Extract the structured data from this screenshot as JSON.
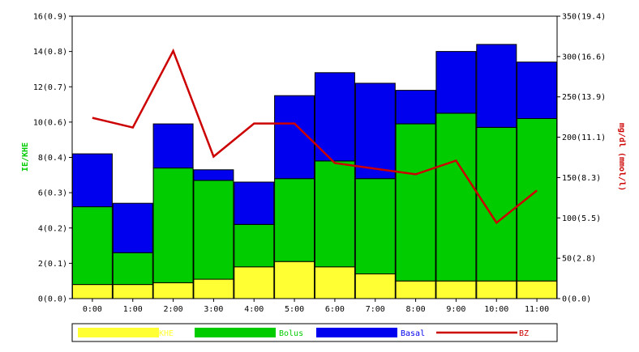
{
  "chart_data": {
    "type": "bar",
    "stacked": true,
    "categories": [
      "0:00",
      "1:00",
      "2:00",
      "3:00",
      "4:00",
      "5:00",
      "6:00",
      "7:00",
      "8:00",
      "9:00",
      "10:00",
      "11:00"
    ],
    "series": [
      {
        "name": "KHE",
        "color": "#ffff33",
        "values": [
          0.8,
          0.8,
          0.9,
          1.1,
          1.8,
          2.1,
          1.8,
          1.4,
          1.0,
          1.0,
          1.0,
          1.0
        ]
      },
      {
        "name": "Bolus",
        "color": "#00cc00",
        "values": [
          4.4,
          1.8,
          6.5,
          5.6,
          2.4,
          4.7,
          6.0,
          5.4,
          8.9,
          9.5,
          8.7,
          9.2
        ]
      },
      {
        "name": "Basal",
        "color": "#0000ee",
        "values": [
          3.0,
          2.8,
          2.5,
          0.6,
          2.4,
          4.7,
          5.0,
          5.4,
          1.9,
          3.5,
          4.7,
          3.2
        ]
      }
    ],
    "line_series": {
      "name": "BZ",
      "color": "#cc0000",
      "values": [
        224,
        212,
        307,
        176,
        217,
        217,
        168,
        161,
        154,
        171,
        94,
        134
      ]
    },
    "ylabel": "IE/KHE",
    "y2label": "mg/dl (mmol/l)",
    "ylim": [
      0,
      16
    ],
    "y2lim": [
      0,
      350
    ],
    "yticks": [
      "0(0.0)",
      "2(0.1)",
      "4(0.2)",
      "6(0.3)",
      "8(0.4)",
      "10(0.6)",
      "12(0.7)",
      "14(0.8)",
      "16(0.9)"
    ],
    "y2ticks": [
      "0(0.0)",
      "50(2.8)",
      "100(5.5)",
      "150(8.3)",
      "200(11.1)",
      "250(13.9)",
      "300(16.6)",
      "350(19.4)"
    ],
    "legend_placement": "bottom",
    "grid": false
  }
}
